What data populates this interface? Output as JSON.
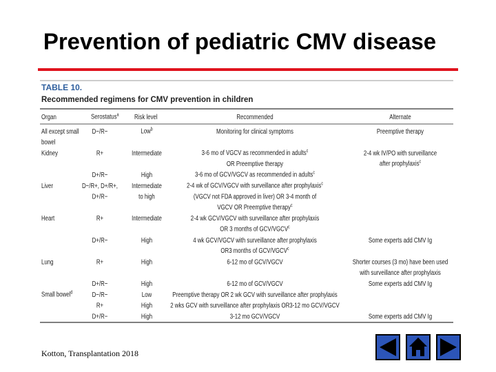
{
  "header": {
    "title": "Prevention of pediatric CMV disease"
  },
  "table": {
    "label": "TABLE 10.",
    "caption": "Recommended regimens for CMV prevention in children",
    "columns": [
      "Organ",
      {
        "text": "Serostatus",
        "sup": "a"
      },
      "Risk level",
      "Recommended",
      "Alternate"
    ],
    "lines": [
      [
        "All except small",
        "D−/R−",
        {
          "text": "Low",
          "sup": "b"
        },
        "Monitoring for clinical symptoms",
        "Preemptive therapy"
      ],
      [
        "bowel",
        null,
        null,
        null,
        null
      ],
      [
        "Kidney",
        "R+",
        "Intermediate",
        {
          "text": "3-6 mo of VGCV as recommended in adults",
          "sup": "c"
        },
        "2-4 wk IV/PO with surveillance"
      ],
      [
        null,
        null,
        null,
        "OR Preemptive therapy",
        {
          "text": "after prophylaxis",
          "sup": "c"
        }
      ],
      [
        null,
        "D+/R−",
        "High",
        {
          "text": "3-6 mo of GCV/VGCV as recommended in adults",
          "sup": "c"
        },
        null
      ],
      [
        "Liver",
        "D−/R+, D+/R+,",
        "Intermediate",
        {
          "text": "2-4 wk of GCV/VGCV with surveillance after prophylaxis",
          "sup": "c"
        },
        null
      ],
      [
        null,
        "D+/R−",
        "to high",
        "(VGCV not FDA approved in liver) OR 3-4 month of",
        null
      ],
      [
        null,
        null,
        null,
        {
          "text": "VGCV OR Preemptive therapy",
          "sup": "c"
        },
        null
      ],
      [
        "Heart",
        "R+",
        "Intermediate",
        "2-4 wk GCV/VGCV with surveillance after prophylaxis",
        null
      ],
      [
        null,
        null,
        null,
        {
          "text": "OR 3 months of GCV/VGCV",
          "sup": "c"
        },
        null
      ],
      [
        null,
        "D+/R−",
        "High",
        "4 wk GCV/VGCV with surveillance after prophylaxis",
        "Some experts add CMV Ig"
      ],
      [
        null,
        null,
        null,
        {
          "text": "OR3 months of GCV/VGCV",
          "sup": "c"
        },
        null
      ],
      [
        "Lung",
        "R+",
        "High",
        "6-12 mo of GCV/VGCV",
        "Shorter courses (3 mo) have been used"
      ],
      [
        null,
        null,
        null,
        null,
        "with surveillance after prophylaxis"
      ],
      [
        null,
        "D+/R−",
        "High",
        "6-12 mo of GCV/VGCV",
        "Some experts add CMV Ig"
      ],
      [
        {
          "text": "Small bowel",
          "sup": "d"
        },
        "D−/R−",
        "Low",
        "Preemptive therapy OR 2 wk GCV with surveillance after prophylaxis",
        null
      ],
      [
        null,
        "R+",
        "High",
        "2 wks GCV with surveillance after prophylaxis OR3-12 mo GCV/VGCV",
        null
      ],
      [
        null,
        "D+/R−",
        "High",
        "3-12 mo GCV/VGCV",
        "Some experts add CMV Ig"
      ]
    ]
  },
  "footer": {
    "citation": "Kotton, Transplantation 2018"
  }
}
